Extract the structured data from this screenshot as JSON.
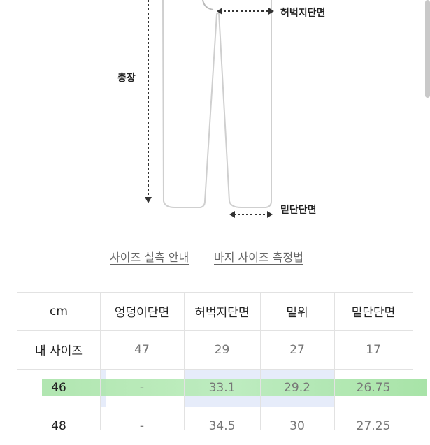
{
  "diagram": {
    "labels": {
      "thigh": "허벅지단면",
      "length": "총장",
      "hem": "밑단단면"
    }
  },
  "links": [
    "사이즈 실측 안내",
    "바지 사이즈 측정법"
  ],
  "table": {
    "header": [
      "cm",
      "엉덩이단면",
      "허벅지단면",
      "밑위",
      "밑단단면"
    ],
    "rows": [
      [
        "내 사이즈",
        "47",
        "29",
        "27",
        "17"
      ],
      [
        "46",
        "-",
        "33.1",
        "29.2",
        "26.75"
      ],
      [
        "48",
        "-",
        "34.5",
        "30",
        "27.25"
      ]
    ]
  }
}
